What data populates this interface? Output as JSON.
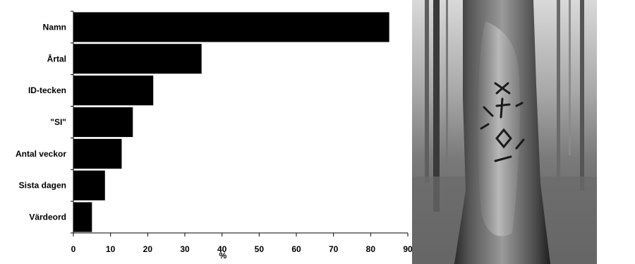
{
  "chart_data": {
    "type": "bar",
    "orientation": "horizontal",
    "categories": [
      "Namn",
      "Årtal",
      "ID-tecken",
      "\"SI\"",
      "Antal veckor",
      "Sista dagen",
      "Värdeord"
    ],
    "values": [
      85,
      34.5,
      21.5,
      16,
      13,
      8.5,
      5
    ],
    "xlabel": "%",
    "ylabel": "",
    "xlim": [
      0,
      90
    ],
    "xticks": [
      "0",
      "10",
      "20",
      "30",
      "40",
      "50",
      "60",
      "70",
      "80",
      "90"
    ],
    "grid": false,
    "bar_color": "#000000"
  },
  "photo": {
    "subject": "carved-tree-trunk"
  }
}
